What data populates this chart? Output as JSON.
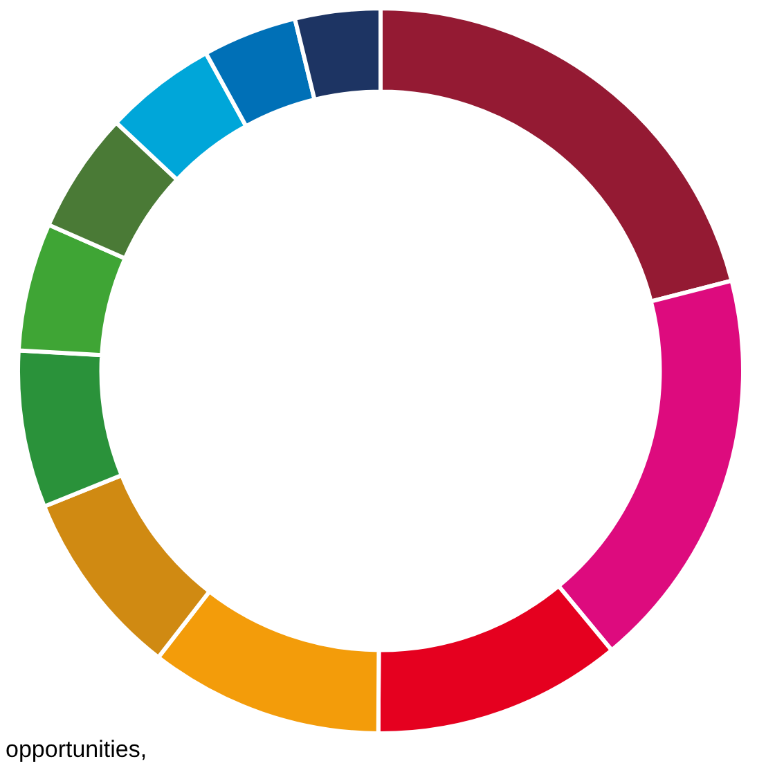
{
  "chart_data": {
    "type": "donut",
    "categories": [
      null,
      null,
      null,
      null,
      null,
      null,
      null,
      null,
      null,
      null,
      null
    ],
    "values": [
      21.0,
      18.0,
      11.1,
      10.4,
      8.4,
      7.0,
      5.7,
      5.4,
      5.0,
      4.2,
      3.8
    ],
    "colors": [
      "#941a33",
      "#dd0b7e",
      "#e5001f",
      "#f39c0a",
      "#d08a12",
      "#2a923a",
      "#3fa535",
      "#4a7a36",
      "#00a6d9",
      "#0070b7",
      "#1d3463"
    ],
    "annotations": [
      "opportunities,"
    ]
  }
}
